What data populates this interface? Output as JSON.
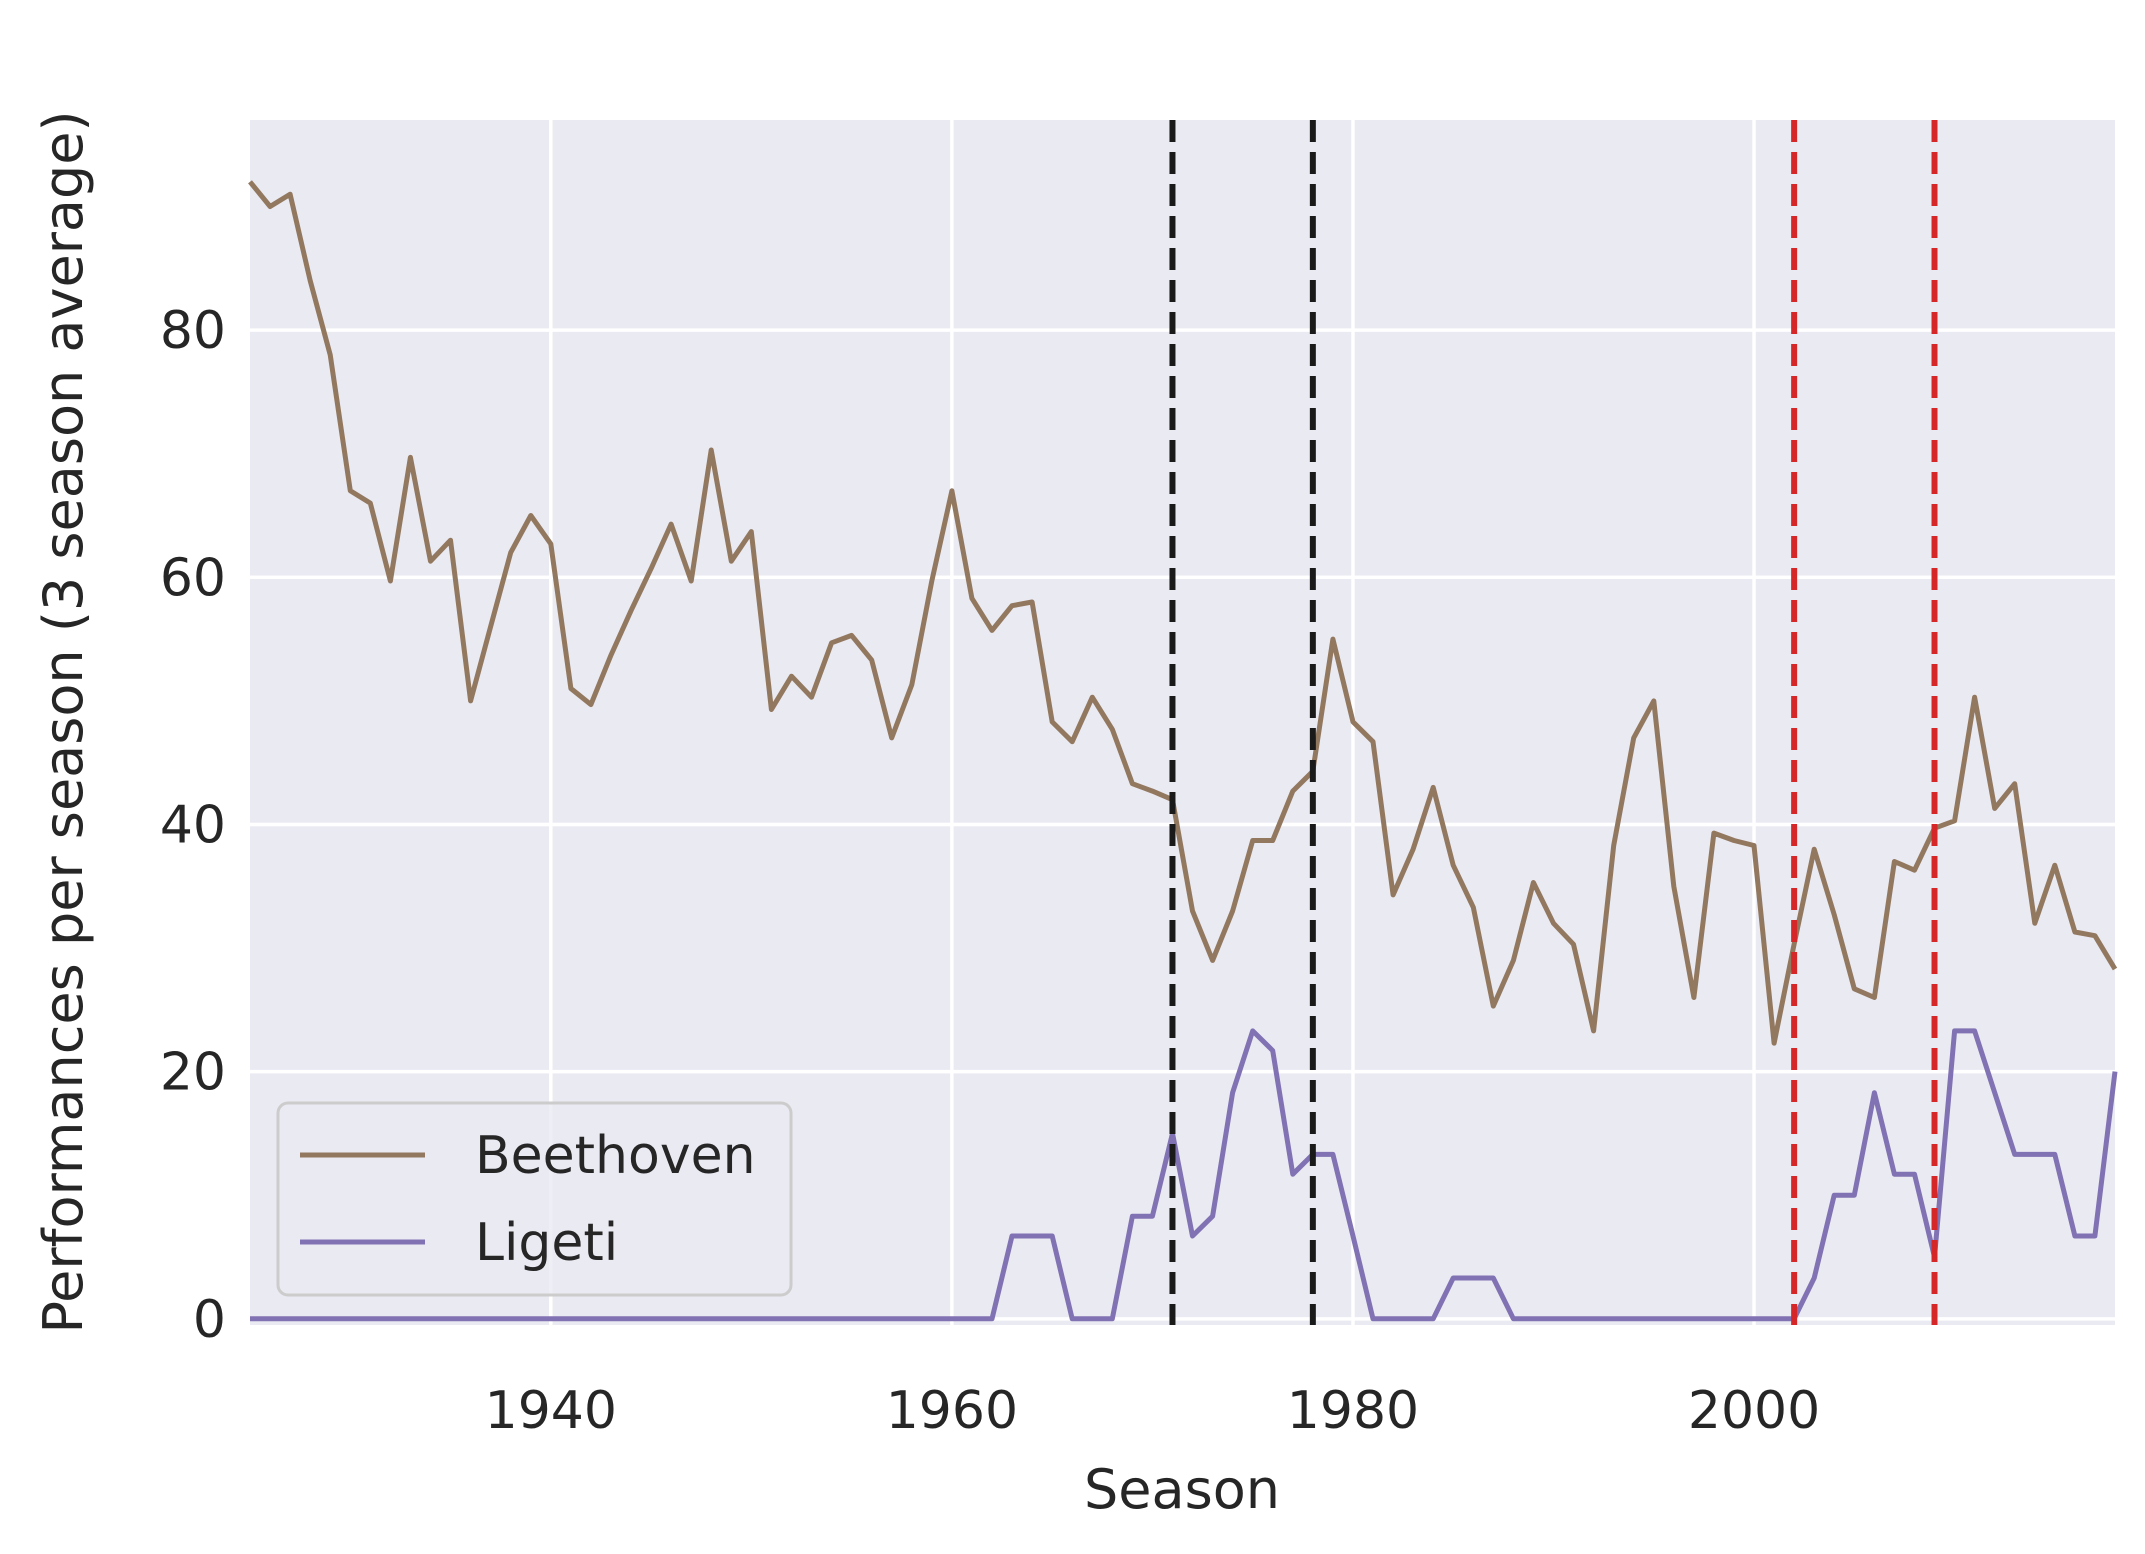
{
  "chart_data": {
    "type": "line",
    "title": "",
    "xlabel": "Season",
    "ylabel": "Performances per season (3 season average)",
    "xlim": [
      1925,
      2018
    ],
    "ylim": [
      -0.5,
      97
    ],
    "xticks": [
      1940,
      1960,
      1980,
      2000
    ],
    "yticks": [
      0,
      20,
      40,
      60,
      80
    ],
    "grid": true,
    "legend_position": "lower-left",
    "vlines": [
      {
        "x": 1971,
        "color": "#1a1a1a",
        "style": "dashed"
      },
      {
        "x": 1978,
        "color": "#1a1a1a",
        "style": "dashed"
      },
      {
        "x": 2002,
        "color": "#d62728",
        "style": "dashed"
      },
      {
        "x": 2009,
        "color": "#d62728",
        "style": "dashed"
      }
    ],
    "x": [
      1925,
      1926,
      1927,
      1928,
      1929,
      1930,
      1931,
      1932,
      1933,
      1934,
      1935,
      1936,
      1937,
      1938,
      1939,
      1940,
      1941,
      1942,
      1943,
      1944,
      1945,
      1946,
      1947,
      1948,
      1949,
      1950,
      1951,
      1952,
      1953,
      1954,
      1955,
      1956,
      1957,
      1958,
      1959,
      1960,
      1961,
      1962,
      1963,
      1964,
      1965,
      1966,
      1967,
      1968,
      1969,
      1970,
      1971,
      1972,
      1973,
      1974,
      1975,
      1976,
      1977,
      1978,
      1979,
      1980,
      1981,
      1982,
      1983,
      1984,
      1985,
      1986,
      1987,
      1988,
      1989,
      1990,
      1991,
      1992,
      1993,
      1994,
      1995,
      1996,
      1997,
      1998,
      1999,
      2000,
      2001,
      2002,
      2003,
      2004,
      2005,
      2006,
      2007,
      2008,
      2009,
      2010,
      2011,
      2012,
      2013,
      2014,
      2015,
      2016,
      2017,
      2018
    ],
    "series": [
      {
        "name": "Beethoven",
        "color": "#937860",
        "values": [
          92,
          90,
          91,
          84,
          78,
          67,
          66,
          59.7,
          69.7,
          61.3,
          63,
          50,
          56,
          62,
          65,
          62.7,
          51,
          49.7,
          53.7,
          57.3,
          60.7,
          64.3,
          59.7,
          70.3,
          61.3,
          63.7,
          49.3,
          52,
          50.3,
          54.7,
          55.3,
          53.3,
          47,
          51.3,
          59.7,
          67,
          58.3,
          55.7,
          57.7,
          58,
          48.3,
          46.7,
          50.3,
          47.7,
          43.3,
          42.7,
          42,
          33,
          29,
          33,
          38.7,
          38.7,
          42.7,
          44.3,
          55,
          48.3,
          46.7,
          34.3,
          38,
          43,
          36.7,
          33.3,
          25.3,
          29,
          35.3,
          32,
          30.3,
          23.3,
          38.3,
          47,
          50,
          35,
          26,
          39.3,
          38.7,
          38.3,
          22.3,
          30.3,
          38,
          32.7,
          26.7,
          26,
          37,
          36.3,
          39.7,
          40.3,
          50.3,
          41.3,
          43.3,
          32,
          36.7,
          31.3,
          31,
          28.3
        ]
      },
      {
        "name": "Ligeti",
        "color": "#8172b3",
        "values": [
          0,
          0,
          0,
          0,
          0,
          0,
          0,
          0,
          0,
          0,
          0,
          0,
          0,
          0,
          0,
          0,
          0,
          0,
          0,
          0,
          0,
          0,
          0,
          0,
          0,
          0,
          0,
          0,
          0,
          0,
          0,
          0,
          0,
          0,
          0,
          0,
          0,
          0,
          6.7,
          6.7,
          6.7,
          0,
          0,
          0,
          8.3,
          8.3,
          15,
          6.7,
          8.3,
          18.3,
          23.3,
          21.7,
          11.7,
          13.3,
          13.3,
          6.7,
          0,
          0,
          0,
          0,
          3.3,
          3.3,
          3.3,
          0,
          0,
          0,
          0,
          0,
          0,
          0,
          0,
          0,
          0,
          0,
          0,
          0,
          0,
          0,
          3.3,
          10,
          10,
          18.3,
          11.7,
          11.7,
          5,
          23.3,
          23.3,
          18.3,
          13.3,
          13.3,
          13.3,
          6.7,
          6.7,
          20
        ]
      }
    ]
  }
}
